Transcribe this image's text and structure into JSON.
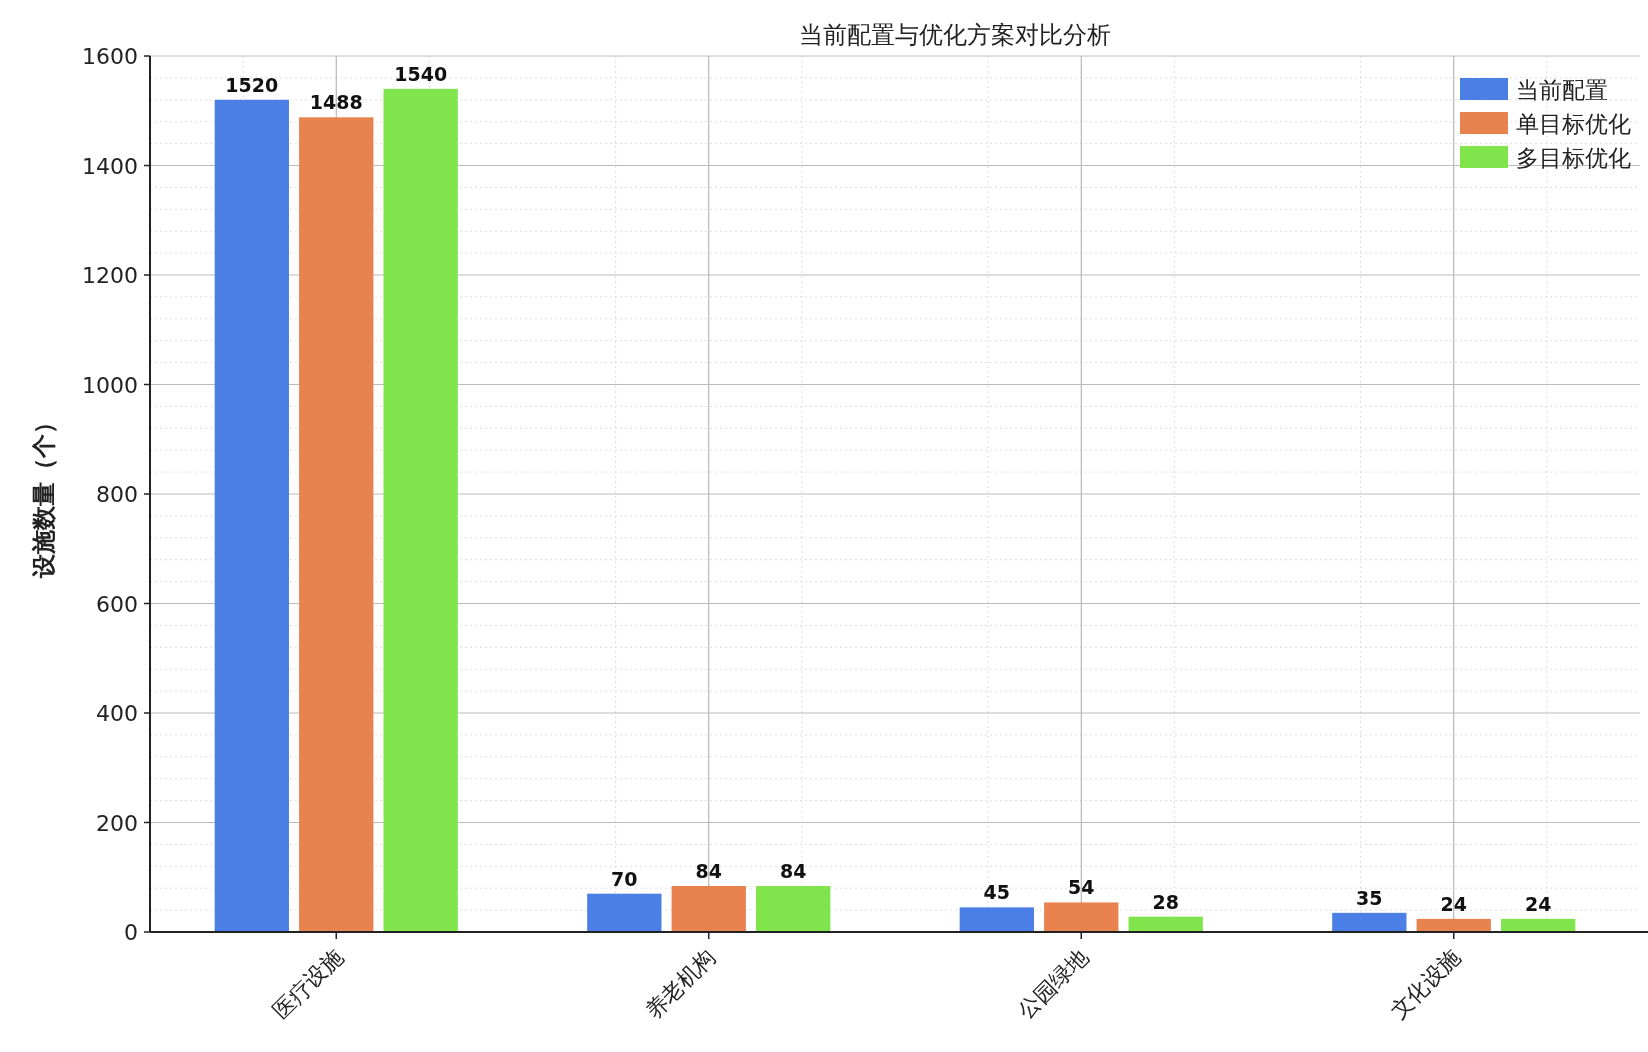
{
  "chart_data": {
    "type": "bar",
    "title": "当前配置与优化方案对比分析",
    "ylabel": "设施数量（个）",
    "categories": [
      "医疗设施",
      "养老机构",
      "公园绿地",
      "文化设施"
    ],
    "series": [
      {
        "name": "当前配置",
        "color": "#4c7fe6",
        "values": [
          1520,
          70,
          45,
          35
        ]
      },
      {
        "name": "单目标优化",
        "color": "#e8824e",
        "values": [
          1488,
          84,
          54,
          24
        ]
      },
      {
        "name": "多目标优化",
        "color": "#80e54c",
        "values": [
          1540,
          84,
          28,
          24
        ]
      }
    ],
    "ylim": [
      0,
      1600
    ],
    "yticks": [
      0,
      200,
      400,
      600,
      800,
      1000,
      1200,
      1400,
      1600
    ],
    "grid": true,
    "legend": "top right",
    "data_labels": true
  }
}
